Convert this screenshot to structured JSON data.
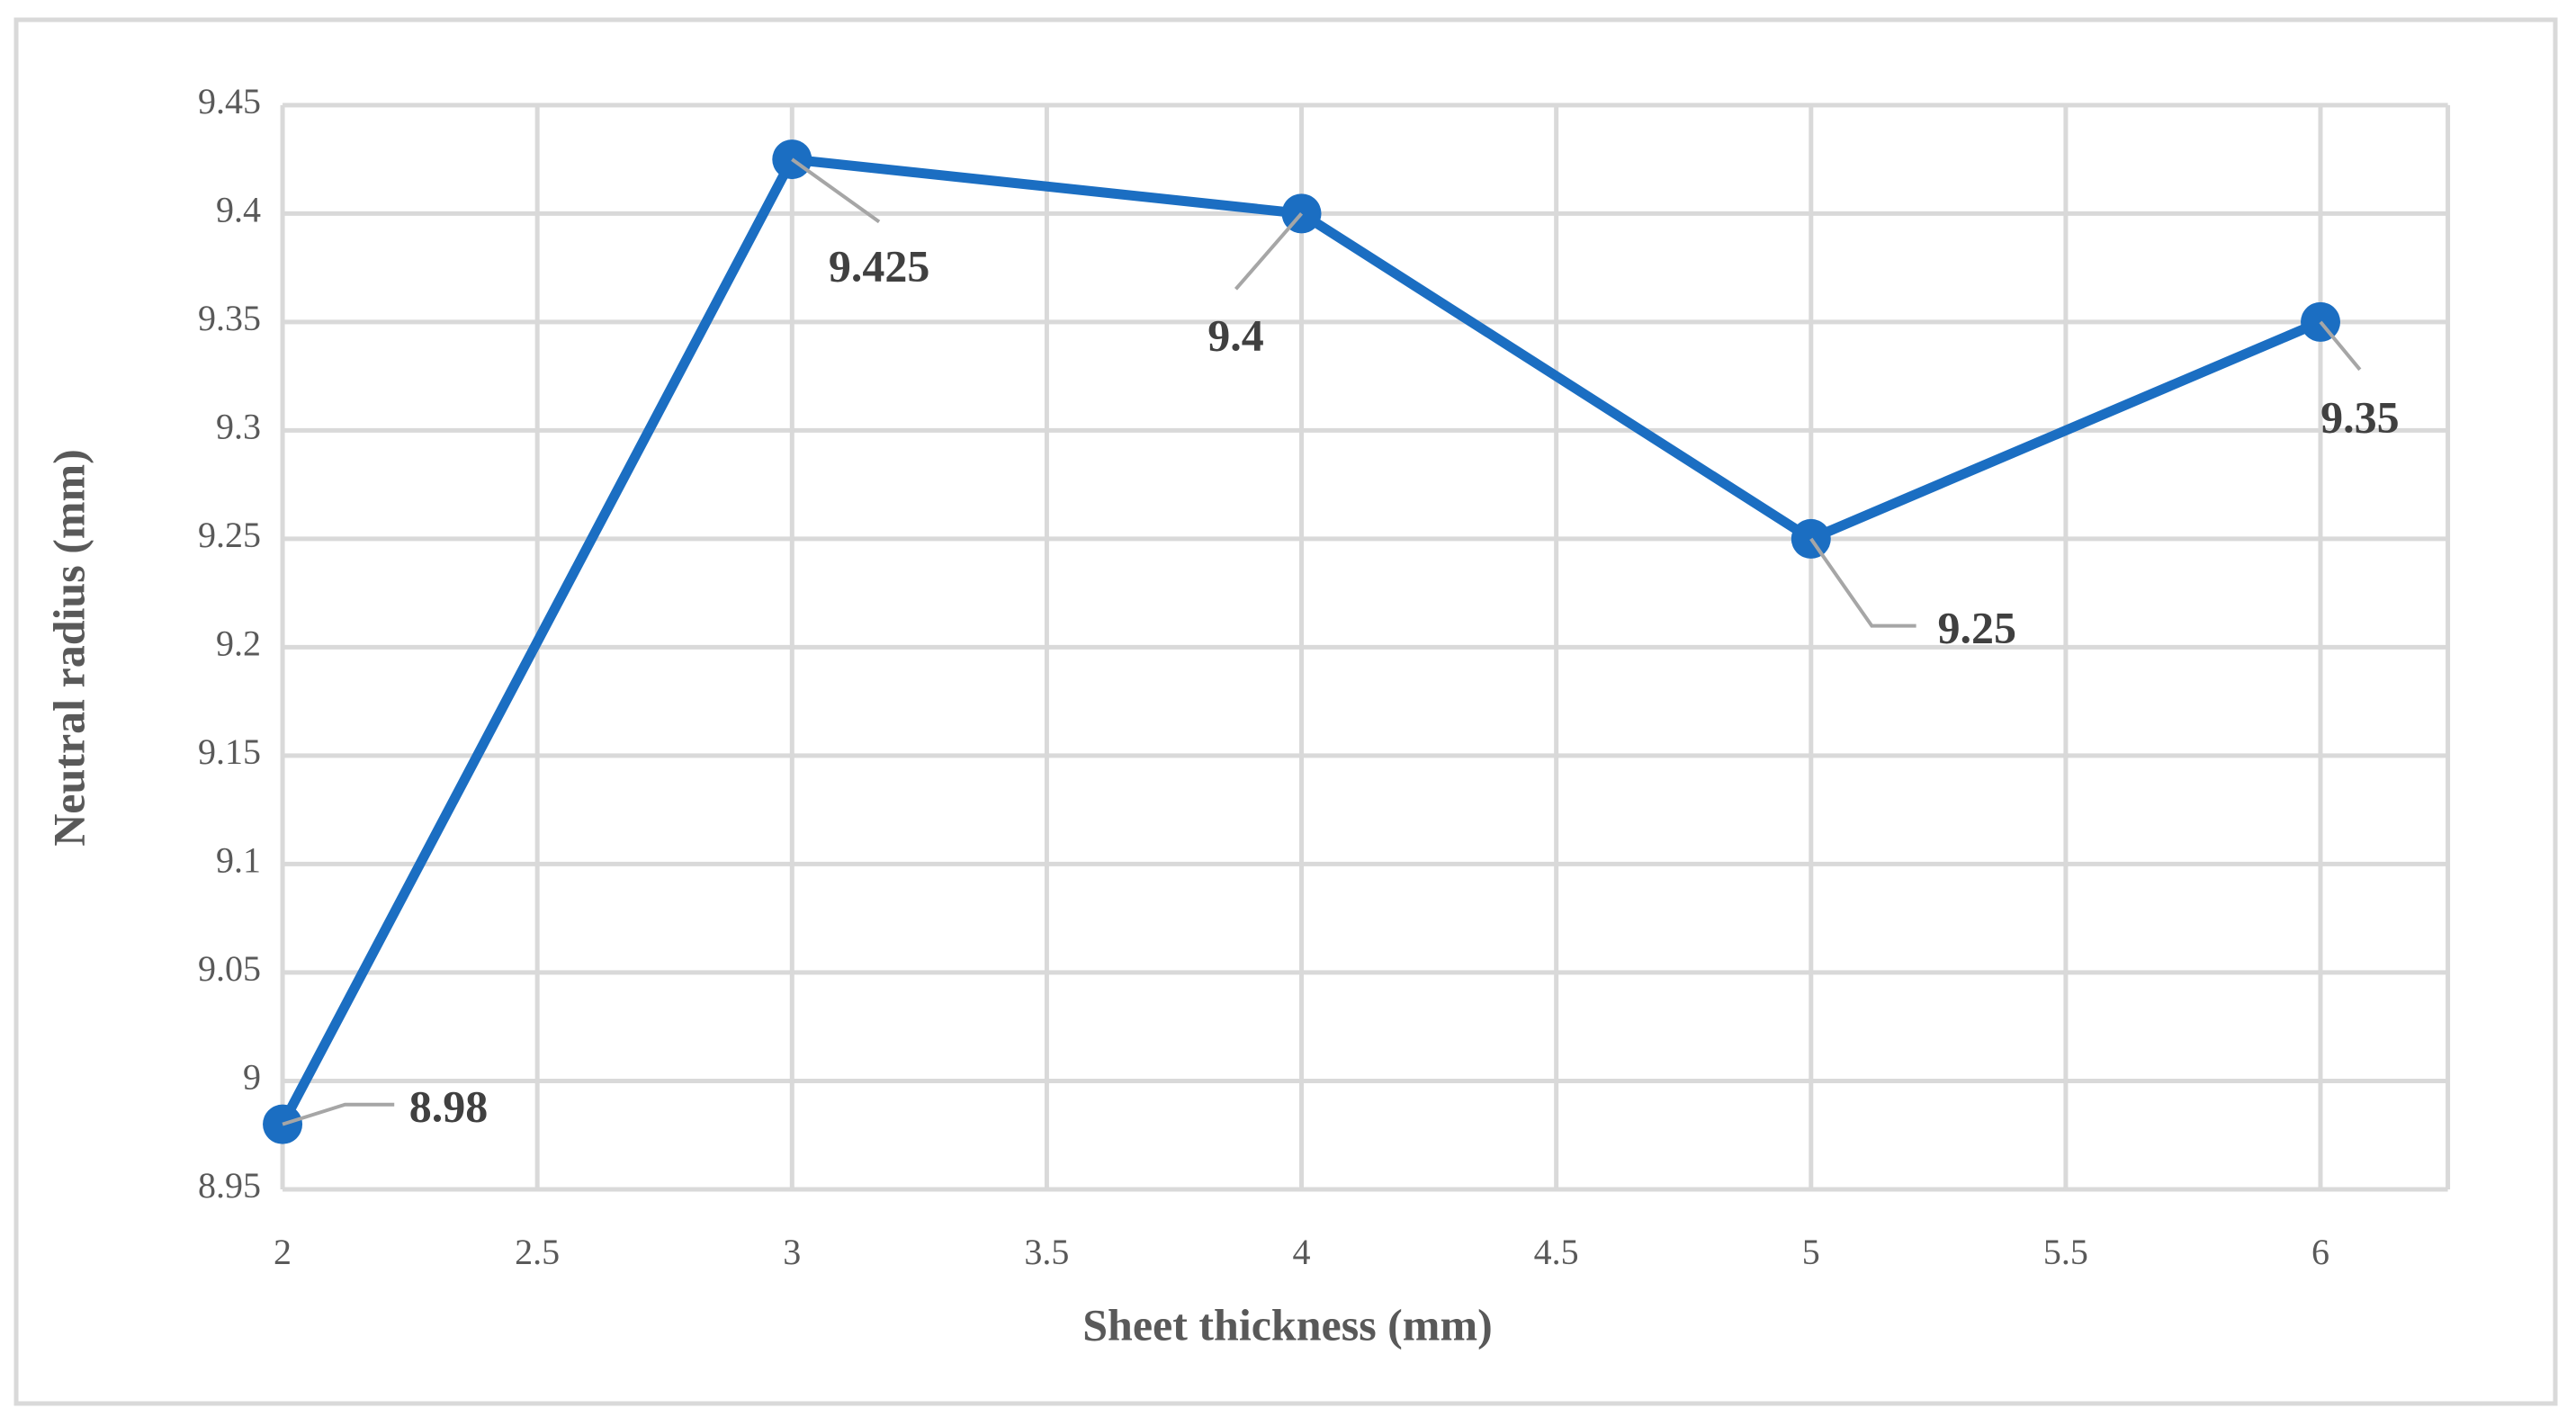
{
  "chart_data": {
    "type": "line",
    "x_label": "Sheet thickness (mm)",
    "y_label": "Neutral radius (mm)",
    "x": [
      2,
      3,
      4,
      5,
      6
    ],
    "series": [
      {
        "name": "Neutral radius",
        "color": "#1b6ec2",
        "values": [
          8.98,
          9.425,
          9.4,
          9.25,
          9.35
        ]
      }
    ],
    "xlim": [
      2,
      6.25
    ],
    "xticks": [
      2,
      2.5,
      3,
      3.5,
      4,
      4.5,
      5,
      5.5,
      6
    ],
    "ylim": [
      8.95,
      9.45
    ],
    "yticks": [
      8.95,
      9,
      9.05,
      9.1,
      9.15,
      9.2,
      9.25,
      9.3,
      9.35,
      9.4,
      9.45
    ],
    "grid": true,
    "data_labels": true
  }
}
